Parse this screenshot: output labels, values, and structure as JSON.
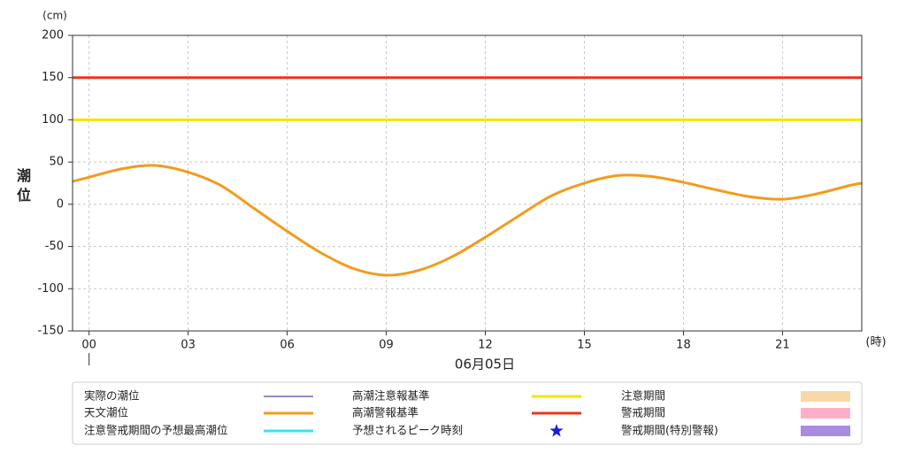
{
  "chart_data": {
    "type": "line",
    "y_unit": "(cm)",
    "y_label": "潮位",
    "x_unit": "(時)",
    "date_label": "06月05日",
    "xlim": [
      -0.5,
      23.4
    ],
    "ylim": [
      -150,
      200
    ],
    "xticks": [
      {
        "value": 0,
        "label": "00"
      },
      {
        "value": 3,
        "label": "03"
      },
      {
        "value": 6,
        "label": "06"
      },
      {
        "value": 9,
        "label": "09"
      },
      {
        "value": 12,
        "label": "12"
      },
      {
        "value": 15,
        "label": "15"
      },
      {
        "value": 18,
        "label": "18"
      },
      {
        "value": 21,
        "label": "21"
      }
    ],
    "yticks": [
      -150,
      -100,
      -50,
      0,
      50,
      100,
      150,
      200
    ],
    "grid": true,
    "series": [
      {
        "name": "実際の潮位",
        "color": "#2a1a8c",
        "symbol": "thin-line"
      },
      {
        "name": "天文潮位",
        "color": "#f29b1d",
        "symbol": "line",
        "x": [
          -0.5,
          0,
          1,
          2,
          3,
          4,
          5,
          6,
          7,
          8,
          9,
          10,
          11,
          12,
          13,
          14,
          15,
          16,
          17,
          18,
          19,
          20,
          21,
          22,
          23,
          23.4
        ],
        "values": [
          27,
          32,
          42,
          46,
          38,
          22,
          -5,
          -32,
          -57,
          -76,
          -84,
          -78,
          -62,
          -39,
          -14,
          10,
          25,
          34,
          33,
          26,
          17,
          9,
          6,
          12,
          22,
          25
        ]
      },
      {
        "name": "注意警戒期間の予想最高潮位",
        "color": "#33e6f0",
        "symbol": "line"
      },
      {
        "name": "高潮注意報基準",
        "color": "#f2e600",
        "symbol": "line",
        "value": 100
      },
      {
        "name": "高潮警報基準",
        "color": "#e8381b",
        "symbol": "line",
        "value": 150
      },
      {
        "name": "予想されるピーク時刻",
        "color": "#1a1adc",
        "symbol": "star"
      },
      {
        "name": "注意期間",
        "color": "#fad7a8",
        "symbol": "box"
      },
      {
        "name": "警戒期間",
        "color": "#fcb0c8",
        "symbol": "box"
      },
      {
        "name": "警戒期間(特別警報)",
        "color": "#a98ce0",
        "symbol": "box"
      }
    ]
  }
}
